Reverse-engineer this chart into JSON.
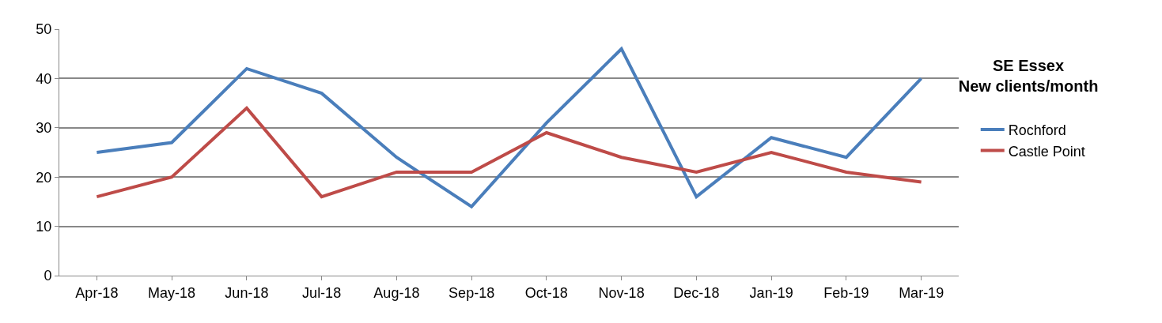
{
  "chart_data": {
    "type": "line",
    "title": "SE Essex\nNew clients/month",
    "categories": [
      "Apr-18",
      "May-18",
      "Jun-18",
      "Jul-18",
      "Aug-18",
      "Sep-18",
      "Oct-18",
      "Nov-18",
      "Dec-18",
      "Jan-19",
      "Feb-19",
      "Mar-19"
    ],
    "series": [
      {
        "name": "Rochford",
        "color": "#4a7ebb",
        "values": [
          25,
          27,
          42,
          37,
          24,
          14,
          31,
          46,
          16,
          28,
          24,
          40
        ]
      },
      {
        "name": "Castle Point",
        "color": "#be4b48",
        "values": [
          16,
          20,
          34,
          16,
          21,
          21,
          29,
          24,
          21,
          25,
          21,
          19
        ]
      }
    ],
    "ylim": [
      0,
      50
    ],
    "yticks": [
      0,
      10,
      20,
      30,
      40,
      50
    ],
    "grid": "y",
    "legend": "right",
    "marker": "none",
    "line_style": "solid"
  }
}
